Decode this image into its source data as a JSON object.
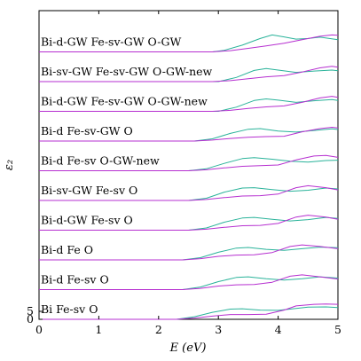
{
  "chart_data": {
    "type": "line",
    "xlabel": "E (eV)",
    "ylabel": "ε₂",
    "xlim": [
      0,
      5
    ],
    "ylim_first_panel": [
      0,
      10
    ],
    "x_ticks": [
      "0",
      "1",
      "2",
      "3",
      "4",
      "5"
    ],
    "y_ticks": [
      "0",
      "5"
    ],
    "grid": false,
    "colors": {
      "green": "#2ab39a",
      "magenta": "#b62fd0"
    },
    "panels": [
      {
        "label": "Bi-d-GW Fe-sv-GW O-GW",
        "series": [
          {
            "color": "green",
            "points": [
              [
                2.9,
                0
              ],
              [
                3.1,
                1.0
              ],
              [
                3.4,
                4.2
              ],
              [
                3.7,
                8.4
              ],
              [
                3.9,
                10.6
              ],
              [
                4.1,
                9.4
              ],
              [
                4.3,
                8.0
              ],
              [
                4.5,
                8.4
              ],
              [
                4.7,
                9.2
              ],
              [
                5.0,
                7.6
              ]
            ]
          },
          {
            "color": "magenta",
            "points": [
              [
                2.9,
                0
              ],
              [
                3.2,
                0.8
              ],
              [
                3.5,
                2.2
              ],
              [
                3.8,
                3.8
              ],
              [
                4.1,
                5.4
              ],
              [
                4.4,
                7.6
              ],
              [
                4.7,
                9.8
              ],
              [
                4.9,
                10.6
              ],
              [
                5.0,
                10.4
              ]
            ]
          }
        ]
      },
      {
        "label": "Bi-sv-GW Fe-sv-GW O-GW-new",
        "series": [
          {
            "color": "green",
            "points": [
              [
                3.0,
                0
              ],
              [
                3.3,
                2.6
              ],
              [
                3.6,
                7.0
              ],
              [
                3.8,
                8.2
              ],
              [
                4.0,
                7.2
              ],
              [
                4.3,
                5.8
              ],
              [
                4.6,
                6.6
              ],
              [
                4.9,
                7.2
              ],
              [
                5.0,
                6.8
              ]
            ]
          },
          {
            "color": "magenta",
            "points": [
              [
                2.9,
                0
              ],
              [
                3.2,
                0.6
              ],
              [
                3.5,
                1.8
              ],
              [
                3.8,
                3.0
              ],
              [
                4.1,
                3.8
              ],
              [
                4.4,
                6.0
              ],
              [
                4.7,
                8.6
              ],
              [
                4.9,
                9.6
              ],
              [
                5.0,
                9.0
              ]
            ]
          }
        ]
      },
      {
        "label": "Bi-d-GW Fe-sv-GW O-GW-new",
        "series": [
          {
            "color": "green",
            "points": [
              [
                3.0,
                0
              ],
              [
                3.3,
                2.6
              ],
              [
                3.6,
                6.8
              ],
              [
                3.8,
                7.8
              ],
              [
                4.0,
                7.0
              ],
              [
                4.3,
                5.6
              ],
              [
                4.6,
                6.6
              ],
              [
                4.9,
                7.4
              ],
              [
                5.0,
                6.8
              ]
            ]
          },
          {
            "color": "magenta",
            "points": [
              [
                2.9,
                0
              ],
              [
                3.2,
                0.6
              ],
              [
                3.5,
                1.8
              ],
              [
                3.8,
                2.8
              ],
              [
                4.1,
                3.4
              ],
              [
                4.4,
                5.6
              ],
              [
                4.7,
                8.4
              ],
              [
                4.9,
                9.4
              ],
              [
                5.0,
                8.8
              ]
            ]
          }
        ]
      },
      {
        "label": "Bi-d Fe-sv-GW O",
        "series": [
          {
            "color": "green",
            "points": [
              [
                2.6,
                0
              ],
              [
                2.9,
                1.4
              ],
              [
                3.2,
                4.8
              ],
              [
                3.5,
                7.4
              ],
              [
                3.7,
                7.8
              ],
              [
                4.0,
                6.2
              ],
              [
                4.3,
                5.6
              ],
              [
                4.6,
                6.6
              ],
              [
                4.9,
                7.6
              ],
              [
                5.0,
                7.2
              ]
            ]
          },
          {
            "color": "magenta",
            "points": [
              [
                2.6,
                0
              ],
              [
                2.9,
                0.6
              ],
              [
                3.2,
                1.6
              ],
              [
                3.5,
                2.4
              ],
              [
                3.8,
                2.8
              ],
              [
                4.1,
                3.0
              ],
              [
                4.4,
                5.8
              ],
              [
                4.7,
                7.8
              ],
              [
                4.9,
                8.6
              ],
              [
                5.0,
                8.2
              ]
            ]
          }
        ]
      },
      {
        "label": "Bi-d Fe-sv O-GW-new",
        "series": [
          {
            "color": "green",
            "points": [
              [
                2.5,
                0
              ],
              [
                2.8,
                1.2
              ],
              [
                3.1,
                4.6
              ],
              [
                3.4,
                7.6
              ],
              [
                3.6,
                8.2
              ],
              [
                3.9,
                7.2
              ],
              [
                4.2,
                6.0
              ],
              [
                4.5,
                5.4
              ],
              [
                4.8,
                6.4
              ],
              [
                5.0,
                6.6
              ]
            ]
          },
          {
            "color": "magenta",
            "points": [
              [
                2.5,
                0
              ],
              [
                2.8,
                0.6
              ],
              [
                3.1,
                1.8
              ],
              [
                3.4,
                2.8
              ],
              [
                3.7,
                3.2
              ],
              [
                4.0,
                3.6
              ],
              [
                4.3,
                6.8
              ],
              [
                4.6,
                9.2
              ],
              [
                4.8,
                9.6
              ],
              [
                5.0,
                8.4
              ]
            ]
          }
        ]
      },
      {
        "label": "Bi-sv-GW Fe-sv O",
        "series": [
          {
            "color": "green",
            "points": [
              [
                2.5,
                0
              ],
              [
                2.8,
                1.4
              ],
              [
                3.1,
                5.2
              ],
              [
                3.4,
                7.8
              ],
              [
                3.6,
                8.0
              ],
              [
                3.9,
                6.8
              ],
              [
                4.2,
                5.8
              ],
              [
                4.5,
                6.4
              ],
              [
                4.8,
                7.8
              ],
              [
                5.0,
                7.2
              ]
            ]
          },
          {
            "color": "magenta",
            "points": [
              [
                2.5,
                0
              ],
              [
                2.8,
                0.6
              ],
              [
                3.1,
                1.8
              ],
              [
                3.4,
                2.8
              ],
              [
                3.7,
                3.0
              ],
              [
                4.0,
                4.0
              ],
              [
                4.3,
                8.0
              ],
              [
                4.5,
                9.2
              ],
              [
                4.8,
                8.0
              ],
              [
                5.0,
                6.6
              ]
            ]
          }
        ]
      },
      {
        "label": "Bi-d-GW Fe-sv O",
        "series": [
          {
            "color": "green",
            "points": [
              [
                2.5,
                0
              ],
              [
                2.8,
                1.4
              ],
              [
                3.1,
                5.0
              ],
              [
                3.4,
                7.6
              ],
              [
                3.6,
                8.0
              ],
              [
                3.9,
                6.8
              ],
              [
                4.2,
                5.8
              ],
              [
                4.5,
                6.6
              ],
              [
                4.8,
                8.0
              ],
              [
                5.0,
                7.4
              ]
            ]
          },
          {
            "color": "magenta",
            "points": [
              [
                2.5,
                0
              ],
              [
                2.8,
                0.6
              ],
              [
                3.1,
                1.8
              ],
              [
                3.4,
                2.8
              ],
              [
                3.7,
                3.0
              ],
              [
                4.0,
                4.2
              ],
              [
                4.3,
                8.2
              ],
              [
                4.5,
                9.4
              ],
              [
                4.8,
                8.2
              ],
              [
                5.0,
                6.8
              ]
            ]
          }
        ]
      },
      {
        "label": "Bi-d Fe O",
        "series": [
          {
            "color": "green",
            "points": [
              [
                2.4,
                0
              ],
              [
                2.7,
                1.4
              ],
              [
                3.0,
                4.8
              ],
              [
                3.3,
                7.4
              ],
              [
                3.5,
                7.8
              ],
              [
                3.8,
                6.6
              ],
              [
                4.1,
                6.0
              ],
              [
                4.4,
                7.0
              ],
              [
                4.7,
                8.0
              ],
              [
                5.0,
                7.6
              ]
            ]
          },
          {
            "color": "magenta",
            "points": [
              [
                2.4,
                0
              ],
              [
                2.7,
                0.8
              ],
              [
                3.0,
                2.2
              ],
              [
                3.3,
                3.0
              ],
              [
                3.6,
                3.2
              ],
              [
                3.9,
                4.6
              ],
              [
                4.2,
                8.4
              ],
              [
                4.4,
                9.4
              ],
              [
                4.7,
                8.4
              ],
              [
                5.0,
                7.0
              ]
            ]
          }
        ]
      },
      {
        "label": "Bi-d Fe-sv O",
        "series": [
          {
            "color": "green",
            "points": [
              [
                2.4,
                0
              ],
              [
                2.7,
                1.6
              ],
              [
                3.0,
                5.0
              ],
              [
                3.3,
                7.6
              ],
              [
                3.5,
                8.0
              ],
              [
                3.8,
                6.8
              ],
              [
                4.1,
                6.0
              ],
              [
                4.4,
                6.8
              ],
              [
                4.7,
                8.0
              ],
              [
                5.0,
                7.2
              ]
            ]
          },
          {
            "color": "magenta",
            "points": [
              [
                2.4,
                0
              ],
              [
                2.7,
                0.8
              ],
              [
                3.0,
                2.2
              ],
              [
                3.3,
                3.0
              ],
              [
                3.6,
                3.2
              ],
              [
                3.9,
                4.6
              ],
              [
                4.2,
                8.4
              ],
              [
                4.4,
                9.2
              ],
              [
                4.7,
                8.0
              ],
              [
                5.0,
                6.6
              ]
            ]
          }
        ]
      },
      {
        "label": "Bi Fe-sv O",
        "series": [
          {
            "color": "green",
            "points": [
              [
                2.3,
                0
              ],
              [
                2.6,
                1.6
              ],
              [
                2.9,
                4.4
              ],
              [
                3.2,
                6.4
              ],
              [
                3.4,
                6.6
              ],
              [
                3.7,
                5.8
              ],
              [
                4.0,
                5.6
              ],
              [
                4.2,
                6.4
              ],
              [
                4.5,
                7.6
              ],
              [
                4.8,
                7.8
              ],
              [
                5.0,
                7.4
              ]
            ]
          },
          {
            "color": "magenta",
            "points": [
              [
                2.3,
                0
              ],
              [
                2.6,
                0.8
              ],
              [
                2.9,
                2.0
              ],
              [
                3.2,
                3.0
              ],
              [
                3.5,
                3.0
              ],
              [
                3.8,
                3.2
              ],
              [
                4.1,
                5.8
              ],
              [
                4.3,
                8.4
              ],
              [
                4.6,
                9.4
              ],
              [
                4.8,
                9.6
              ],
              [
                5.0,
                9.4
              ]
            ]
          }
        ]
      }
    ]
  }
}
